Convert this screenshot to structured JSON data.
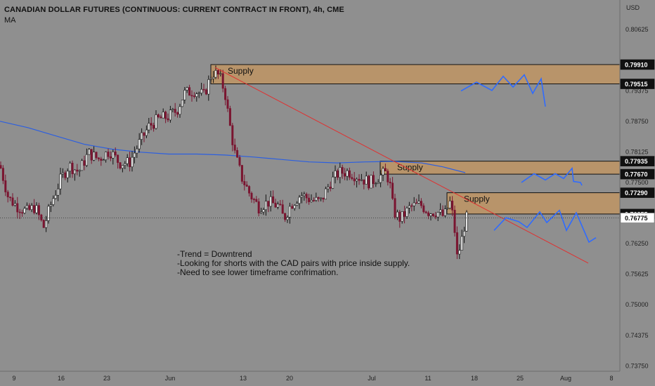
{
  "header": {
    "title": "CANADIAN DOLLAR FUTURES (CONTINUOUS: CURRENT CONTRACT IN FRONT), 4h, CME",
    "indicator": "MA",
    "currency": "USD"
  },
  "chart_data": {
    "type": "candlestick",
    "yaxis_ticks": [
      "0.80625",
      "0.79375",
      "0.78750",
      "0.78125",
      "0.77500",
      "0.76250",
      "0.75625",
      "0.75000",
      "0.74375",
      "0.73750"
    ],
    "yaxis_tick_values": [
      0.80625,
      0.79375,
      0.7875,
      0.78125,
      0.775,
      0.7625,
      0.75625,
      0.75,
      0.74375,
      0.7375
    ],
    "ylim": [
      0.7364,
      0.8123
    ],
    "xaxis_ticks": [
      "9",
      "16",
      "23",
      "Jun",
      "13",
      "20",
      "Jul",
      "11",
      "18",
      "25",
      "Aug",
      "8"
    ],
    "highlight_labels": [
      {
        "text": "0.79910",
        "value": 0.7991,
        "style": "dark"
      },
      {
        "text": "0.79515",
        "value": 0.79515,
        "style": "dark"
      },
      {
        "text": "0.77935",
        "value": 0.77935,
        "style": "dark"
      },
      {
        "text": "0.77670",
        "value": 0.7767,
        "style": "dark"
      },
      {
        "text": "0.77290",
        "value": 0.7729,
        "style": "dark"
      },
      {
        "text": "0.76855",
        "value": 0.76855,
        "style": "dark"
      },
      {
        "text": "0.76775",
        "value": 0.76775,
        "style": "light"
      }
    ],
    "current_price": 0.76775,
    "zones": [
      {
        "label": "Supply",
        "top": 0.7991,
        "bottom": 0.79515
      },
      {
        "label": "Supply",
        "top": 0.77935,
        "bottom": 0.7767
      },
      {
        "label": "Supply",
        "top": 0.7729,
        "bottom": 0.76855
      }
    ],
    "annotation_lines": [
      "-Trend = Downtrend",
      "-Looking for shorts with the CAD pairs with price inside supply.",
      "-Need to see lower timeframe confrimation."
    ],
    "colors": {
      "background": "#8f8f8f",
      "candle_up": "#111111",
      "candle_down": "#7a1530",
      "ma_line": "#2c5fe0",
      "trendline": "#e03030",
      "zone_fill": "#b8946a",
      "projection": "#2f6bff"
    }
  }
}
